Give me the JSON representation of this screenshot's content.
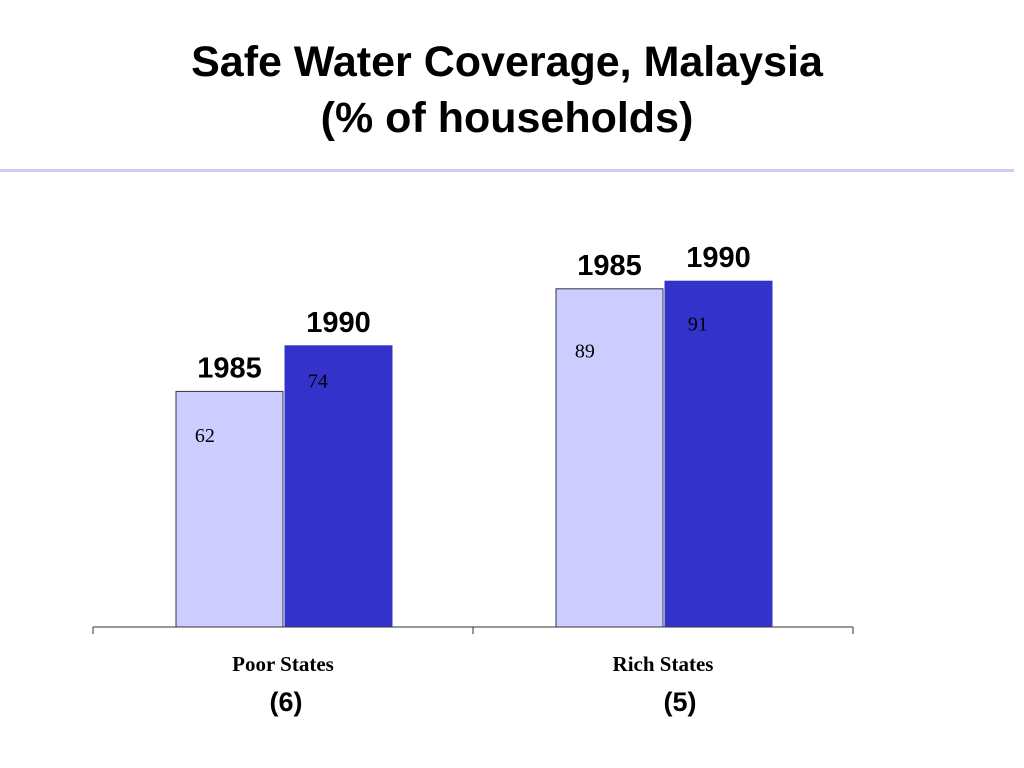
{
  "chart_data": {
    "type": "bar",
    "title": "Safe Water Coverage, Malaysia",
    "subtitle": "(% of households)",
    "categories": [
      "Poor States",
      "Rich States"
    ],
    "category_sublabels": [
      "(6)",
      "(5)"
    ],
    "series": [
      {
        "name": "1985",
        "values": [
          62,
          89
        ],
        "color": "#ccccff"
      },
      {
        "name": "1990",
        "values": [
          74,
          91
        ],
        "color": "#3333cc"
      }
    ],
    "data_labels": [
      [
        "62",
        "89"
      ],
      [
        "74",
        "91"
      ]
    ],
    "xlabel": "",
    "ylabel": "",
    "ylim": [
      0,
      100
    ],
    "grid": false,
    "legend": "none"
  },
  "colors": {
    "rule": "#ccccf5",
    "axis": "#333333",
    "bar_outline_light": "#333344",
    "bar_outline_dark": "#3333cc"
  }
}
